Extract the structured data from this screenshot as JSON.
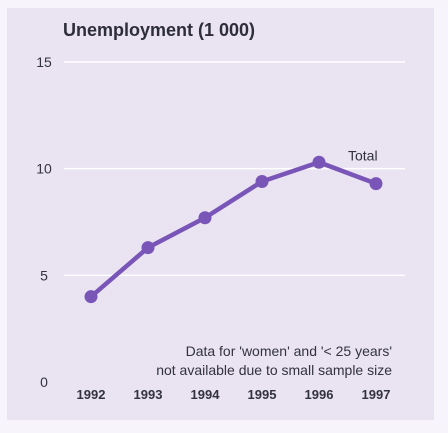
{
  "chart_data": {
    "type": "line",
    "title": "Unemployment (1 000)",
    "xlabel": "",
    "ylabel": "",
    "categories": [
      "1992",
      "1993",
      "1994",
      "1995",
      "1996",
      "1997"
    ],
    "yticks": [
      "0",
      "5",
      "10",
      "15"
    ],
    "ylim": [
      0,
      15
    ],
    "grid": true,
    "series": [
      {
        "name": "Total",
        "values": [
          4.0,
          6.3,
          7.7,
          9.4,
          10.3,
          9.3
        ]
      }
    ],
    "annotation_lines": [
      "Data for 'women' and '< 25 years'",
      "not available due to small sample size"
    ],
    "colors": {
      "line": "#7a55b8",
      "grid": "#ffffff",
      "background": "#e9e3f2"
    }
  }
}
